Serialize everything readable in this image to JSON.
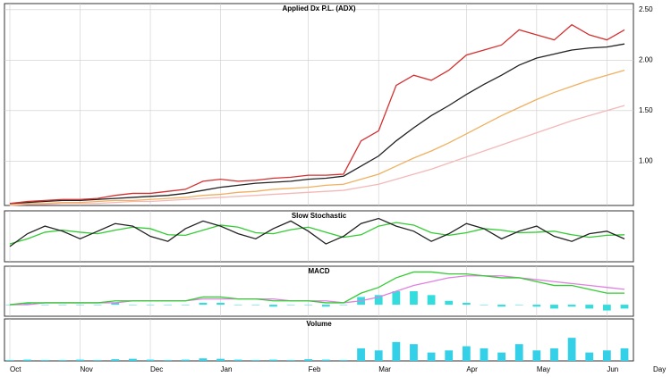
{
  "chart_data": [
    {
      "type": "line",
      "title": "Applied Dx P.L. (ADX)",
      "ylim": [
        0.56,
        2.56
      ],
      "yticks": [
        {
          "value": 1,
          "label": "1.00"
        },
        {
          "value": 1.5,
          "label": "1.50"
        },
        {
          "value": 2,
          "label": "2.00"
        },
        {
          "value": 2.5,
          "label": "2.50"
        }
      ],
      "grid": true,
      "series": [
        {
          "color": "#f4b8b8",
          "values": [
            0.56,
            0.57,
            0.57,
            0.58,
            0.58,
            0.58,
            0.59,
            0.6,
            0.6,
            0.61,
            0.62,
            0.63,
            0.64,
            0.65,
            0.66,
            0.67,
            0.68,
            0.69,
            0.7,
            0.71,
            0.74,
            0.77,
            0.82,
            0.87,
            0.92,
            0.98,
            1.04,
            1.1,
            1.16,
            1.22,
            1.28,
            1.34,
            1.4,
            1.45,
            1.5,
            1.55
          ]
        },
        {
          "color": "#f0b060",
          "values": [
            0.57,
            0.58,
            0.58,
            0.59,
            0.59,
            0.6,
            0.61,
            0.61,
            0.62,
            0.63,
            0.64,
            0.66,
            0.67,
            0.69,
            0.7,
            0.72,
            0.73,
            0.74,
            0.76,
            0.77,
            0.82,
            0.87,
            0.95,
            1.03,
            1.1,
            1.18,
            1.27,
            1.36,
            1.45,
            1.53,
            1.61,
            1.68,
            1.74,
            1.8,
            1.85,
            1.9
          ]
        },
        {
          "color": "#222222",
          "values": [
            0.58,
            0.59,
            0.6,
            0.61,
            0.61,
            0.62,
            0.63,
            0.64,
            0.65,
            0.66,
            0.68,
            0.71,
            0.74,
            0.76,
            0.78,
            0.79,
            0.8,
            0.82,
            0.83,
            0.85,
            0.95,
            1.05,
            1.2,
            1.33,
            1.45,
            1.55,
            1.66,
            1.76,
            1.85,
            1.95,
            2.02,
            2.06,
            2.1,
            2.12,
            2.13,
            2.16
          ]
        },
        {
          "color": "#d43030",
          "values": [
            0.58,
            0.6,
            0.61,
            0.62,
            0.62,
            0.63,
            0.66,
            0.68,
            0.68,
            0.7,
            0.72,
            0.8,
            0.82,
            0.8,
            0.81,
            0.83,
            0.84,
            0.86,
            0.86,
            0.87,
            1.2,
            1.3,
            1.75,
            1.85,
            1.8,
            1.9,
            2.05,
            2.1,
            2.15,
            2.3,
            2.25,
            2.2,
            2.35,
            2.25,
            2.2,
            2.3
          ]
        }
      ]
    },
    {
      "type": "line",
      "title": "Slow Stochastic",
      "ylim": [
        0,
        100
      ],
      "series": [
        {
          "color": "#33cc33",
          "values": [
            35,
            45,
            58,
            62,
            58,
            55,
            62,
            68,
            65,
            53,
            52,
            62,
            72,
            68,
            57,
            55,
            63,
            68,
            58,
            48,
            53,
            70,
            77,
            72,
            57,
            52,
            57,
            65,
            62,
            57,
            58,
            60,
            53,
            48,
            52,
            53
          ]
        },
        {
          "color": "#222222",
          "values": [
            30,
            55,
            70,
            60,
            45,
            60,
            75,
            70,
            50,
            40,
            65,
            80,
            70,
            55,
            45,
            65,
            80,
            60,
            35,
            50,
            75,
            85,
            70,
            60,
            40,
            55,
            75,
            65,
            45,
            60,
            70,
            50,
            40,
            55,
            60,
            45
          ]
        }
      ]
    },
    {
      "type": "line",
      "title": "MACD",
      "ylim": [
        -0.06,
        0.2
      ],
      "series": [
        {
          "color": "#33dddd",
          "kind": "bar",
          "values": [
            0,
            0.01,
            0,
            0,
            0,
            0,
            0.01,
            0,
            0,
            0,
            0,
            0.01,
            0.01,
            0,
            0,
            -0.01,
            0,
            0,
            -0.01,
            0,
            0.04,
            0.05,
            0.07,
            0.07,
            0.05,
            0.02,
            0.01,
            0,
            -0.01,
            0,
            -0.01,
            -0.02,
            -0.01,
            -0.02,
            -0.03,
            -0.02
          ]
        },
        {
          "color": "#e080e0",
          "values": [
            0,
            0,
            0.01,
            0.01,
            0.01,
            0.01,
            0.01,
            0.02,
            0.02,
            0.02,
            0.02,
            0.03,
            0.03,
            0.03,
            0.03,
            0.03,
            0.02,
            0.02,
            0.02,
            0.01,
            0.02,
            0.04,
            0.07,
            0.1,
            0.12,
            0.14,
            0.15,
            0.15,
            0.15,
            0.14,
            0.13,
            0.12,
            0.11,
            0.1,
            0.09,
            0.08
          ]
        },
        {
          "color": "#33cc33",
          "values": [
            0,
            0.01,
            0.01,
            0.01,
            0.01,
            0.01,
            0.02,
            0.02,
            0.02,
            0.02,
            0.02,
            0.04,
            0.04,
            0.03,
            0.03,
            0.02,
            0.02,
            0.02,
            0.01,
            0.01,
            0.06,
            0.09,
            0.14,
            0.17,
            0.17,
            0.16,
            0.16,
            0.15,
            0.14,
            0.14,
            0.12,
            0.1,
            0.1,
            0.08,
            0.06,
            0.06
          ]
        }
      ]
    },
    {
      "type": "bar",
      "title": "Volume",
      "ylim": [
        0,
        100
      ],
      "x_label": "Day",
      "categories": [
        "Oct",
        null,
        null,
        null,
        "Nov",
        null,
        null,
        null,
        "Dec",
        null,
        null,
        null,
        "Jan",
        null,
        null,
        null,
        null,
        "Feb",
        null,
        null,
        null,
        "Mar",
        null,
        null,
        null,
        null,
        "Apr",
        null,
        null,
        null,
        "May",
        null,
        null,
        null,
        "Jun",
        null
      ],
      "series": [
        {
          "color": "#33d0e8",
          "values": [
            2,
            3,
            2,
            2,
            3,
            2,
            4,
            5,
            3,
            2,
            3,
            6,
            5,
            3,
            2,
            3,
            2,
            4,
            3,
            2,
            30,
            25,
            45,
            40,
            20,
            25,
            35,
            30,
            20,
            40,
            25,
            30,
            55,
            20,
            25,
            30
          ]
        }
      ]
    }
  ]
}
